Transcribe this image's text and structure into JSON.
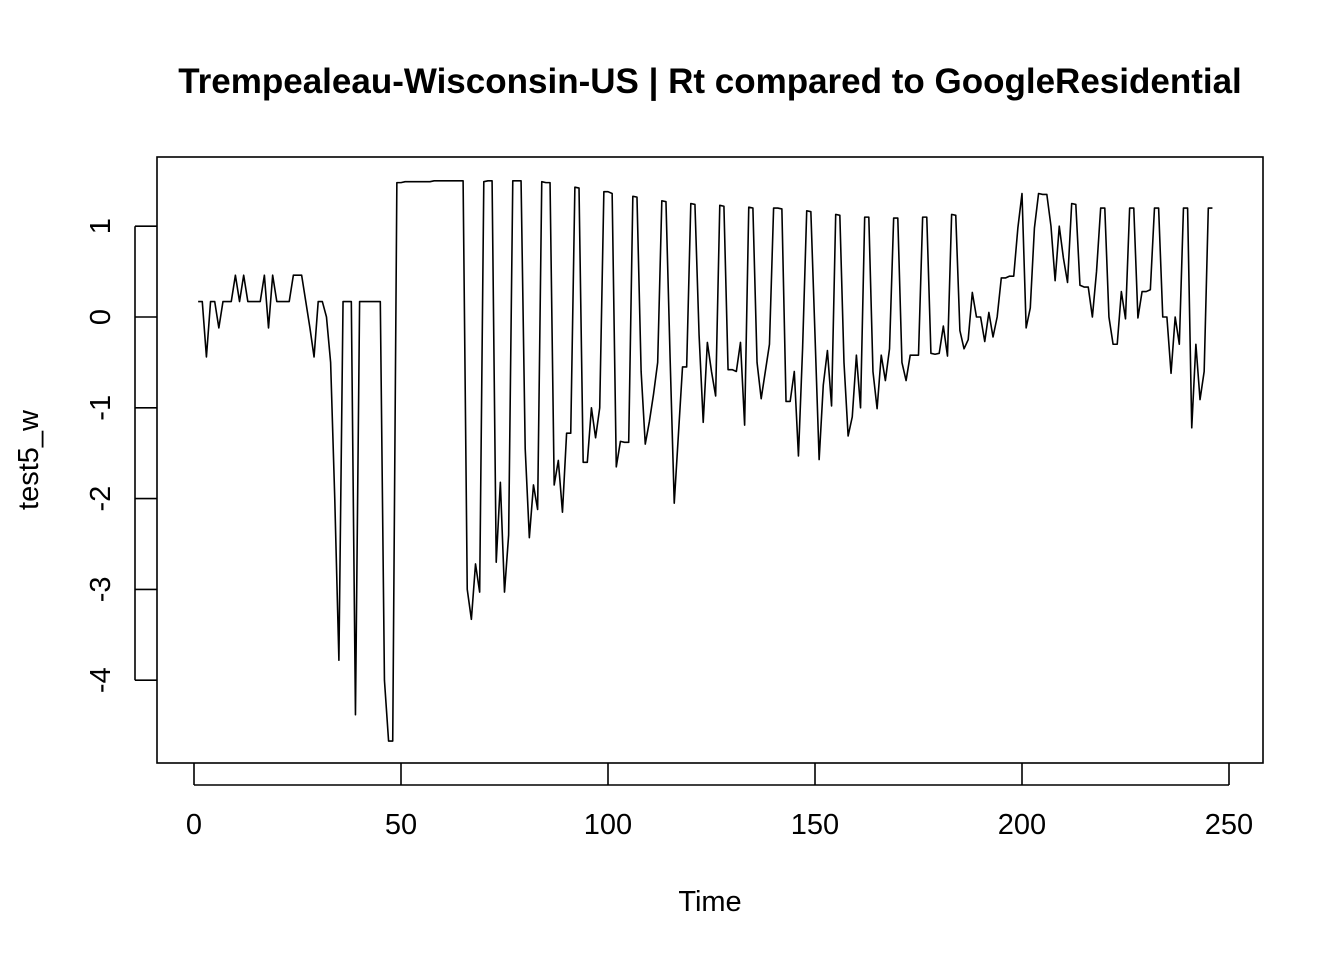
{
  "chart_data": {
    "type": "line",
    "title": "Trempealeau-Wisconsin-US | Rt compared to GoogleResidential",
    "xlabel": "Time",
    "ylabel": "test5_w",
    "xlim": [
      0,
      250
    ],
    "ylim": [
      -4.7,
      1.5
    ],
    "x_ticks": [
      0,
      50,
      100,
      150,
      200,
      250
    ],
    "y_ticks": [
      -4,
      -3,
      -2,
      -1,
      0,
      1
    ],
    "grid": false,
    "legend": "none",
    "series": [
      {
        "color": "#000000",
        "x_start": 1,
        "values": [
          0.17,
          0.17,
          -0.44,
          0.17,
          0.17,
          -0.12,
          0.17,
          0.17,
          0.17,
          0.46,
          0.17,
          0.46,
          0.17,
          0.17,
          0.17,
          0.17,
          0.46,
          -0.12,
          0.46,
          0.17,
          0.17,
          0.17,
          0.17,
          0.46,
          0.46,
          0.46,
          0.17,
          -0.12,
          -0.44,
          0.17,
          0.17,
          0.0,
          -0.5,
          -2.0,
          -3.78,
          0.17,
          0.17,
          0.17,
          -4.38,
          0.17,
          0.17,
          0.17,
          0.17,
          0.17,
          0.17,
          -4.0,
          -4.67,
          -4.67,
          1.48,
          1.48,
          1.49,
          1.49,
          1.49,
          1.49,
          1.49,
          1.49,
          1.49,
          1.5,
          1.5,
          1.5,
          1.5,
          1.5,
          1.5,
          1.5,
          1.5,
          -3.0,
          -3.33,
          -2.72,
          -3.03,
          1.49,
          1.5,
          1.5,
          -2.7,
          -1.82,
          -3.03,
          -2.4,
          1.5,
          1.5,
          1.5,
          -1.45,
          -2.43,
          -1.85,
          -2.12,
          1.49,
          1.48,
          1.48,
          -1.85,
          -1.58,
          -2.15,
          -1.28,
          -1.28,
          1.43,
          1.42,
          -1.6,
          -1.6,
          -1.0,
          -1.33,
          -1.0,
          1.38,
          1.38,
          1.36,
          -1.65,
          -1.37,
          -1.38,
          -1.38,
          1.33,
          1.32,
          -0.6,
          -1.4,
          -1.15,
          -0.85,
          -0.5,
          1.28,
          1.27,
          -0.45,
          -2.05,
          -1.3,
          -0.55,
          -0.55,
          1.25,
          1.24,
          -0.2,
          -1.16,
          -0.28,
          -0.6,
          -0.87,
          1.23,
          1.22,
          -0.58,
          -0.58,
          -0.6,
          -0.28,
          -1.19,
          1.21,
          1.2,
          -0.5,
          -0.9,
          -0.6,
          -0.3,
          1.2,
          1.2,
          1.19,
          -0.93,
          -0.93,
          -0.6,
          -1.53,
          -0.35,
          1.17,
          1.16,
          -0.2,
          -1.57,
          -0.75,
          -0.37,
          -0.98,
          1.13,
          1.12,
          -0.5,
          -1.31,
          -1.1,
          -0.42,
          -1.0,
          1.1,
          1.1,
          -0.6,
          -1.01,
          -0.42,
          -0.7,
          -0.35,
          1.09,
          1.09,
          -0.5,
          -0.7,
          -0.42,
          -0.42,
          -0.42,
          1.1,
          1.1,
          -0.4,
          -0.41,
          -0.4,
          -0.1,
          -0.43,
          1.13,
          1.12,
          -0.15,
          -0.35,
          -0.25,
          0.27,
          0.0,
          0.0,
          -0.27,
          0.05,
          -0.22,
          0.0,
          0.43,
          0.43,
          0.45,
          0.45,
          0.98,
          1.36,
          -0.12,
          0.1,
          0.98,
          1.36,
          1.35,
          1.35,
          1.0,
          0.4,
          1.0,
          0.65,
          0.38,
          1.25,
          1.24,
          0.35,
          0.33,
          0.33,
          0.0,
          0.5,
          1.2,
          1.2,
          0.0,
          -0.3,
          -0.3,
          0.28,
          -0.02,
          1.2,
          1.2,
          -0.01,
          0.28,
          0.28,
          0.3,
          1.2,
          1.2,
          0.0,
          0.0,
          -0.62,
          0.0,
          -0.3,
          1.2,
          1.2,
          -1.22,
          -0.3,
          -0.91,
          -0.6,
          1.2,
          1.2
        ]
      }
    ]
  }
}
